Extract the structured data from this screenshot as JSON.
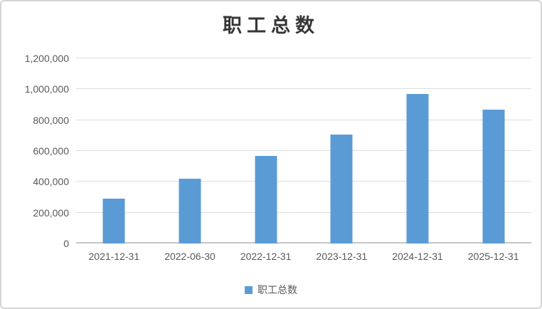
{
  "legend": {
    "label": "职工总数",
    "marker_color": "#5B9BD5"
  },
  "colors": {
    "bar": "#5B9BD5",
    "gridline": "#DCDCDC",
    "axis_line": "#C6C6C6",
    "tick_text": "#595959",
    "title_text": "#363636",
    "chart_border": "#D4D4D4"
  },
  "chart_data": {
    "type": "bar",
    "title": "职工总数",
    "series_name": "职工总数",
    "categories": [
      "2021-12-31",
      "2022-06-30",
      "2022-12-31",
      "2023-12-31",
      "2024-12-31",
      "2025-12-31"
    ],
    "values": [
      290000,
      420000,
      570000,
      705000,
      970000,
      870000
    ],
    "xlabel": "",
    "ylabel": "",
    "ylim": [
      0,
      1200000
    ],
    "y_tick_step": 200000,
    "y_tick_labels": [
      "0",
      "200,000",
      "400,000",
      "600,000",
      "800,000",
      "1,000,000",
      "1,200,000"
    ],
    "grid": true,
    "legend_position": "bottom",
    "bar_color": "#5B9BD5"
  }
}
